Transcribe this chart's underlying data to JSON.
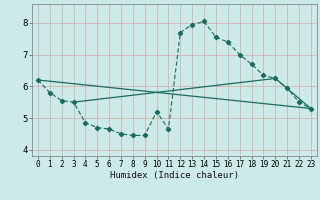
{
  "title": "",
  "xlabel": "Humidex (Indice chaleur)",
  "bg_color": "#cceae8",
  "grid_color_major": "#d4aaaa",
  "line_color": "#1a6b60",
  "xlim": [
    -0.5,
    23.5
  ],
  "ylim": [
    3.8,
    8.6
  ],
  "yticks": [
    4,
    5,
    6,
    7,
    8
  ],
  "xticks": [
    0,
    1,
    2,
    3,
    4,
    5,
    6,
    7,
    8,
    9,
    10,
    11,
    12,
    13,
    14,
    15,
    16,
    17,
    18,
    19,
    20,
    21,
    22,
    23
  ],
  "line1_x": [
    0,
    1,
    2,
    3,
    4,
    5,
    6,
    7,
    8,
    9,
    10,
    11,
    12,
    13,
    14,
    15,
    16,
    17,
    18,
    19,
    20,
    21,
    22,
    23
  ],
  "line1_y": [
    6.2,
    5.8,
    5.55,
    5.5,
    4.85,
    4.7,
    4.65,
    4.5,
    4.45,
    4.45,
    5.2,
    4.65,
    7.7,
    7.95,
    8.05,
    7.55,
    7.4,
    7.0,
    6.7,
    6.35,
    6.25,
    5.95,
    5.5,
    5.3
  ],
  "line2_x": [
    0,
    23
  ],
  "line2_y": [
    6.2,
    5.3
  ],
  "line3_x": [
    3,
    20,
    23
  ],
  "line3_y": [
    5.5,
    6.25,
    5.3
  ]
}
